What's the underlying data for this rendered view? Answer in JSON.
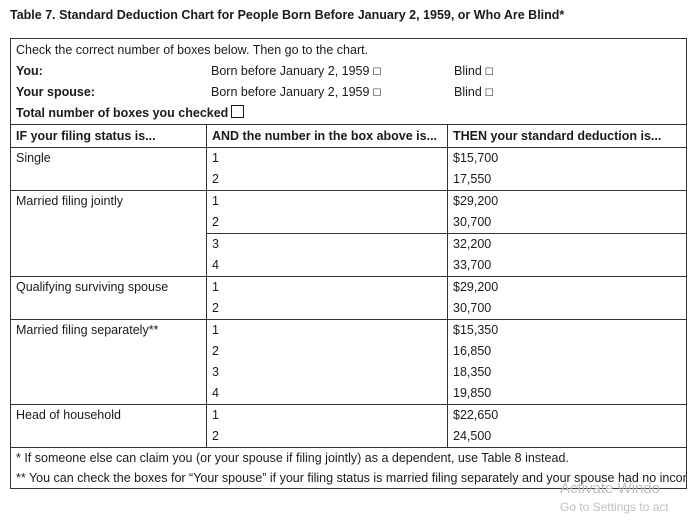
{
  "title": "Table 7. Standard Deduction Chart for People Born Before January 2, 1959, or Who Are Blind*",
  "intro": {
    "instruction": "Check the correct number of boxes below. Then go to the chart.",
    "you_label": "You:",
    "spouse_label": "Your spouse:",
    "born_before": "Born before January 2, 1959",
    "blind": "Blind",
    "total_label": "Total number of boxes you checked"
  },
  "headers": {
    "status": "IF your filing status is...",
    "number": "AND the number in the box above is...",
    "deduction": "THEN your standard deduction is..."
  },
  "groups": [
    {
      "status": "Single",
      "rows": [
        {
          "n": "1",
          "amount": "$15,700"
        },
        {
          "n": "2",
          "amount": "17,550"
        }
      ]
    },
    {
      "status": "Married filing jointly",
      "rows": [
        {
          "n": "1",
          "amount": "$29,200"
        },
        {
          "n": "2",
          "amount": "30,700"
        },
        {
          "n": "3",
          "amount": "32,200"
        },
        {
          "n": "4",
          "amount": "33,700"
        }
      ]
    },
    {
      "status": "Qualifying surviving spouse",
      "rows": [
        {
          "n": "1",
          "amount": "$29,200"
        },
        {
          "n": "2",
          "amount": "30,700"
        }
      ]
    },
    {
      "status": "Married filing separately**",
      "rows": [
        {
          "n": "1",
          "amount": "$15,350"
        },
        {
          "n": "2",
          "amount": "16,850"
        },
        {
          "n": "3",
          "amount": "18,350"
        },
        {
          "n": "4",
          "amount": "19,850"
        }
      ]
    },
    {
      "status": "Head of household",
      "rows": [
        {
          "n": "1",
          "amount": "$22,650"
        },
        {
          "n": "2",
          "amount": "24,500"
        }
      ]
    }
  ],
  "notes": {
    "note1": "* If someone else can claim you (or your spouse if filing jointly) as a dependent, use Table 8 instead.",
    "note2": "** You can check the boxes for “Your spouse” if your filing status is married filing separately and your spouse had no income, isn't filing a return, and can't be claimed as a dependent on another person's tax return."
  },
  "watermark": {
    "line1": "Activate Windo",
    "line2": "Go to Settings to act"
  }
}
